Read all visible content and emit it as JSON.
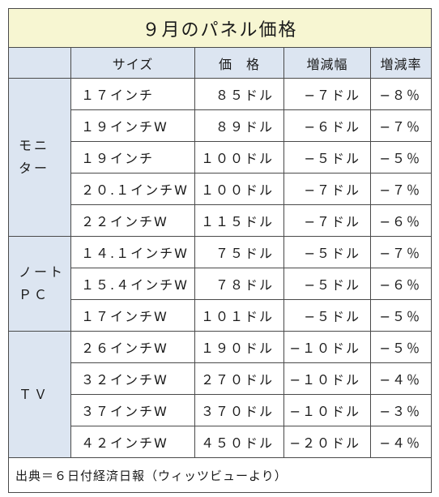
{
  "title": "９月のパネル価格",
  "headers": {
    "size": "サイズ",
    "price": "価　格",
    "change": "増減幅",
    "rate": "増減率"
  },
  "groups": [
    {
      "label_lines": [
        "モニ",
        "ター"
      ],
      "rows": [
        {
          "size": "１７インチ",
          "price": "８５ドル",
          "change": "−７ドル",
          "rate": "−８％"
        },
        {
          "size": "１９インチW",
          "price": "８９ドル",
          "change": "−６ドル",
          "rate": "−７％"
        },
        {
          "size": "１９インチ",
          "price": "１００ドル",
          "change": "−５ドル",
          "rate": "−５％"
        },
        {
          "size": "２０.１インチW",
          "price": "１００ドル",
          "change": "−７ドル",
          "rate": "−７％"
        },
        {
          "size": "２２インチW",
          "price": "１１５ドル",
          "change": "−７ドル",
          "rate": "−６％"
        }
      ]
    },
    {
      "label_lines": [
        "ノート",
        "ＰＣ"
      ],
      "rows": [
        {
          "size": "１４.１インチW",
          "price": "７５ドル",
          "change": "−５ドル",
          "rate": "−７％"
        },
        {
          "size": "１５.４インチW",
          "price": "７８ドル",
          "change": "−５ドル",
          "rate": "−６％"
        },
        {
          "size": "１７インチW",
          "price": "１０１ドル",
          "change": "−５ドル",
          "rate": "−５％"
        }
      ]
    },
    {
      "label_lines": [
        "ＴＶ"
      ],
      "rows": [
        {
          "size": "２６インチW",
          "price": "１９０ドル",
          "change": "−１０ドル",
          "rate": "−５％"
        },
        {
          "size": "３２インチW",
          "price": "２７０ドル",
          "change": "−１０ドル",
          "rate": "−４％"
        },
        {
          "size": "３７インチW",
          "price": "３７０ドル",
          "change": "−１０ドル",
          "rate": "−３％"
        },
        {
          "size": "４２インチW",
          "price": "４５０ドル",
          "change": "−２０ドル",
          "rate": "−４％"
        }
      ]
    }
  ],
  "footer": "出典＝６日付経済日報（ウィッツビューより）",
  "colors": {
    "title_bg": "#f7f6d2",
    "header_bg": "#dce5f1",
    "border": "#4a4a4a"
  }
}
